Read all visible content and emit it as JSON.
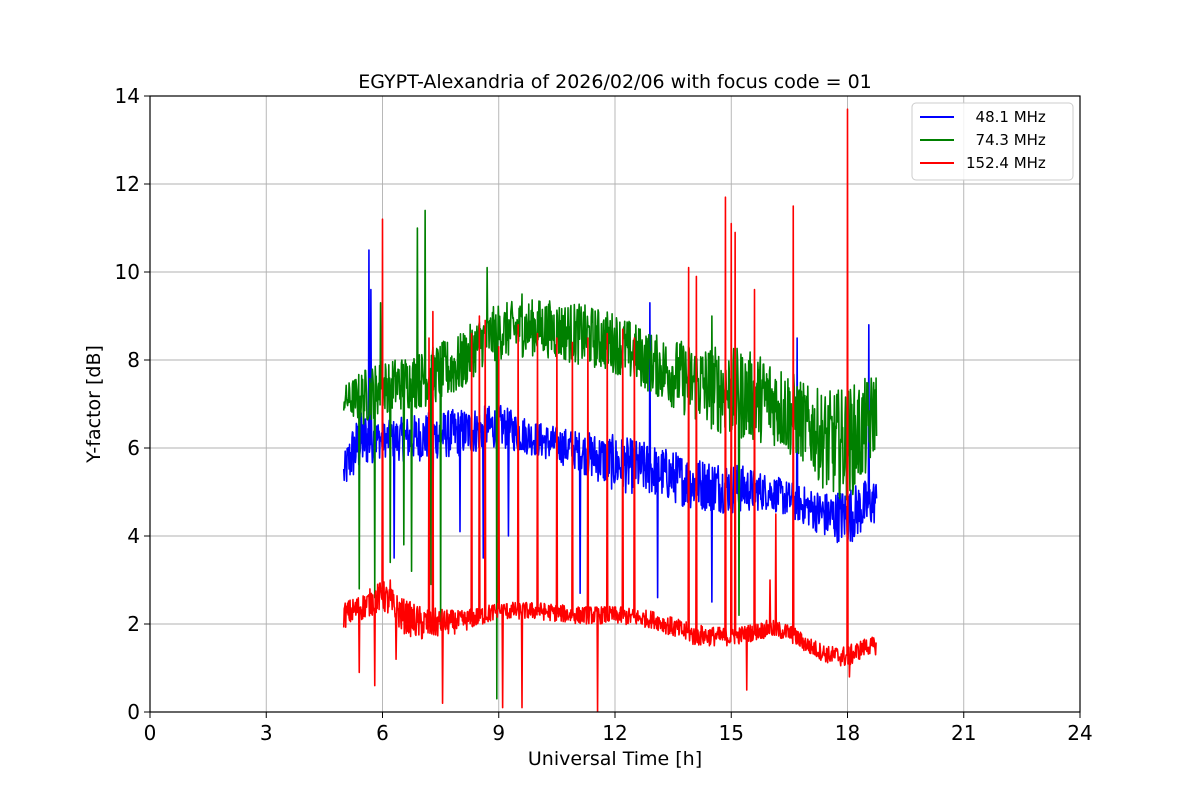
{
  "chart_data": {
    "type": "line",
    "title": "EGYPT-Alexandria of 2026/02/06 with focus code = 01",
    "xlabel": "Universal Time [h]",
    "ylabel": "Y-factor [dB]",
    "xlim": [
      0,
      24
    ],
    "ylim": [
      0,
      14
    ],
    "xticks": [
      0,
      3,
      6,
      9,
      12,
      15,
      18,
      21,
      24
    ],
    "yticks": [
      0,
      2,
      4,
      6,
      8,
      10,
      12,
      14
    ],
    "xtick_labels": [
      "0",
      "3",
      "6",
      "9",
      "12",
      "15",
      "18",
      "21",
      "24"
    ],
    "ytick_labels": [
      "0",
      "2",
      "4",
      "6",
      "8",
      "10",
      "12",
      "14"
    ],
    "grid": true,
    "legend_position": "top-right",
    "series": [
      {
        "name": "  48.1 MHz",
        "color": "#0000ff",
        "band_upper": [
          [
            5.0,
            5.8
          ],
          [
            5.2,
            6.5
          ],
          [
            5.5,
            6.9
          ],
          [
            6.0,
            6.6
          ],
          [
            6.5,
            6.7
          ],
          [
            7.0,
            6.8
          ],
          [
            8.0,
            6.9
          ],
          [
            9.0,
            7.0
          ],
          [
            10.0,
            6.6
          ],
          [
            11.0,
            6.4
          ],
          [
            12.0,
            6.3
          ],
          [
            13.0,
            6.1
          ],
          [
            14.0,
            5.8
          ],
          [
            15.0,
            5.7
          ],
          [
            16.0,
            5.4
          ],
          [
            17.0,
            5.1
          ],
          [
            17.5,
            5.0
          ],
          [
            18.0,
            5.1
          ],
          [
            18.5,
            5.3
          ],
          [
            18.75,
            5.3
          ]
        ],
        "band_lower": [
          [
            5.0,
            5.0
          ],
          [
            5.2,
            5.2
          ],
          [
            5.5,
            5.5
          ],
          [
            6.0,
            5.8
          ],
          [
            6.5,
            5.7
          ],
          [
            7.0,
            5.7
          ],
          [
            8.0,
            5.8
          ],
          [
            9.0,
            6.0
          ],
          [
            10.0,
            5.8
          ],
          [
            11.0,
            5.5
          ],
          [
            12.0,
            5.0
          ],
          [
            13.0,
            4.9
          ],
          [
            14.0,
            4.6
          ],
          [
            15.0,
            4.5
          ],
          [
            16.0,
            4.6
          ],
          [
            17.0,
            4.2
          ],
          [
            17.5,
            3.9
          ],
          [
            18.0,
            3.8
          ],
          [
            18.5,
            4.1
          ],
          [
            18.75,
            4.3
          ]
        ],
        "spikes": [
          [
            5.65,
            10.5
          ],
          [
            5.7,
            9.6
          ],
          [
            6.3,
            3.5
          ],
          [
            7.3,
            3.3
          ],
          [
            8.0,
            4.1
          ],
          [
            8.6,
            3.5
          ],
          [
            9.25,
            4.0
          ],
          [
            11.1,
            2.7
          ],
          [
            12.9,
            9.3
          ],
          [
            13.1,
            2.6
          ],
          [
            14.5,
            2.5
          ],
          [
            16.7,
            8.5
          ],
          [
            18.55,
            8.8
          ]
        ]
      },
      {
        "name": "  74.3 MHz",
        "color": "#008000",
        "band_upper": [
          [
            5.0,
            7.4
          ],
          [
            5.5,
            7.8
          ],
          [
            6.0,
            8.0
          ],
          [
            7.0,
            8.2
          ],
          [
            8.0,
            8.6
          ],
          [
            8.5,
            9.0
          ],
          [
            9.0,
            9.3
          ],
          [
            10.0,
            9.4
          ],
          [
            11.0,
            9.3
          ],
          [
            12.0,
            9.1
          ],
          [
            13.0,
            8.6
          ],
          [
            14.0,
            8.4
          ],
          [
            15.0,
            8.3
          ],
          [
            16.0,
            8.1
          ],
          [
            16.5,
            7.8
          ],
          [
            17.0,
            7.4
          ],
          [
            17.5,
            7.3
          ],
          [
            18.0,
            7.4
          ],
          [
            18.5,
            7.6
          ],
          [
            18.75,
            7.8
          ]
        ],
        "band_lower": [
          [
            5.0,
            6.8
          ],
          [
            5.5,
            6.5
          ],
          [
            6.0,
            6.8
          ],
          [
            7.0,
            6.9
          ],
          [
            8.0,
            7.2
          ],
          [
            8.5,
            7.8
          ],
          [
            9.0,
            8.0
          ],
          [
            10.0,
            8.1
          ],
          [
            11.0,
            7.9
          ],
          [
            12.0,
            7.7
          ],
          [
            13.0,
            7.2
          ],
          [
            14.0,
            6.6
          ],
          [
            15.0,
            6.2
          ],
          [
            16.0,
            6.1
          ],
          [
            16.5,
            5.8
          ],
          [
            17.0,
            5.6
          ],
          [
            17.5,
            4.9
          ],
          [
            18.0,
            4.8
          ],
          [
            18.5,
            5.3
          ],
          [
            18.75,
            6.0
          ]
        ],
        "spikes": [
          [
            5.4,
            2.8
          ],
          [
            5.8,
            2.6
          ],
          [
            5.95,
            9.3
          ],
          [
            6.2,
            3.4
          ],
          [
            6.55,
            3.8
          ],
          [
            6.75,
            3.2
          ],
          [
            6.9,
            11.0
          ],
          [
            7.1,
            11.4
          ],
          [
            7.25,
            2.9
          ],
          [
            7.5,
            1.9
          ],
          [
            8.7,
            10.1
          ],
          [
            8.95,
            0.3
          ],
          [
            9.6,
            9.5
          ],
          [
            14.5,
            9.0
          ],
          [
            15.2,
            2.2
          ]
        ]
      },
      {
        "name": "152.4 MHz",
        "color": "#ff0000",
        "band_upper": [
          [
            5.0,
            2.5
          ],
          [
            5.5,
            2.7
          ],
          [
            6.0,
            3.0
          ],
          [
            6.5,
            2.6
          ],
          [
            7.0,
            2.4
          ],
          [
            8.0,
            2.3
          ],
          [
            9.0,
            2.5
          ],
          [
            10.0,
            2.5
          ],
          [
            11.0,
            2.4
          ],
          [
            12.0,
            2.4
          ],
          [
            13.0,
            2.3
          ],
          [
            14.0,
            2.0
          ],
          [
            15.0,
            1.9
          ],
          [
            16.0,
            2.1
          ],
          [
            16.5,
            2.0
          ],
          [
            17.0,
            1.7
          ],
          [
            17.5,
            1.5
          ],
          [
            18.0,
            1.5
          ],
          [
            18.5,
            1.7
          ],
          [
            18.75,
            1.7
          ]
        ],
        "band_lower": [
          [
            5.0,
            1.9
          ],
          [
            5.5,
            2.1
          ],
          [
            6.0,
            2.3
          ],
          [
            6.5,
            1.8
          ],
          [
            7.0,
            1.6
          ],
          [
            8.0,
            1.8
          ],
          [
            9.0,
            2.1
          ],
          [
            10.0,
            2.1
          ],
          [
            11.0,
            2.0
          ],
          [
            12.0,
            2.0
          ],
          [
            13.0,
            1.9
          ],
          [
            14.0,
            1.5
          ],
          [
            15.0,
            1.5
          ],
          [
            16.0,
            1.7
          ],
          [
            16.5,
            1.6
          ],
          [
            17.0,
            1.3
          ],
          [
            17.5,
            1.1
          ],
          [
            18.0,
            1.0
          ],
          [
            18.5,
            1.3
          ],
          [
            18.75,
            1.3
          ]
        ],
        "spikes": [
          [
            5.4,
            0.9
          ],
          [
            5.8,
            0.6
          ],
          [
            6.0,
            11.2
          ],
          [
            6.2,
            3.0
          ],
          [
            6.35,
            1.2
          ],
          [
            7.2,
            8.5
          ],
          [
            7.3,
            9.1
          ],
          [
            7.55,
            0.2
          ],
          [
            8.3,
            8.6
          ],
          [
            8.5,
            9.0
          ],
          [
            8.65,
            8.9
          ],
          [
            9.0,
            8.3
          ],
          [
            9.1,
            0.1
          ],
          [
            9.5,
            8.8
          ],
          [
            9.6,
            0.1
          ],
          [
            10.0,
            8.6
          ],
          [
            10.5,
            8.5
          ],
          [
            10.9,
            8.4
          ],
          [
            11.3,
            8.5
          ],
          [
            11.55,
            0.0
          ],
          [
            11.8,
            8.6
          ],
          [
            12.2,
            8.7
          ],
          [
            12.5,
            8.5
          ],
          [
            13.9,
            10.1
          ],
          [
            14.1,
            9.9
          ],
          [
            14.85,
            11.7
          ],
          [
            15.0,
            11.1
          ],
          [
            15.1,
            10.9
          ],
          [
            15.4,
            0.5
          ],
          [
            15.6,
            9.6
          ],
          [
            16.0,
            3.0
          ],
          [
            16.15,
            4.5
          ],
          [
            16.6,
            11.5
          ],
          [
            18.0,
            13.7
          ],
          [
            18.05,
            0.8
          ]
        ]
      }
    ]
  }
}
